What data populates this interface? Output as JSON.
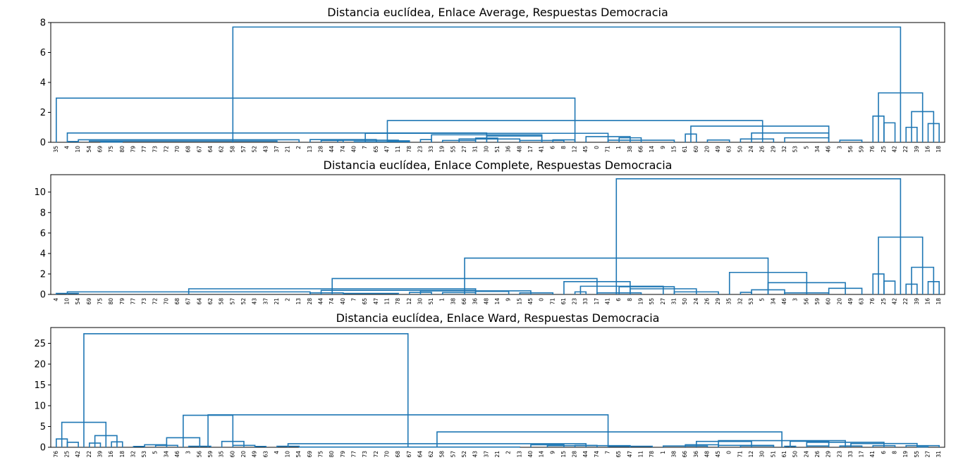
{
  "figure": {
    "line_color": "#1f77b4"
  },
  "chart_data": [
    {
      "type": "dendrogram",
      "title": "Distancia euclídea, Enlace Average, Respuestas Democracia",
      "xlabel": "",
      "ylabel": "",
      "ylim": [
        0,
        8
      ],
      "yticks": [
        0,
        2,
        4,
        6,
        8
      ],
      "leaves": [
        "35",
        "4",
        "10",
        "54",
        "69",
        "75",
        "80",
        "79",
        "77",
        "73",
        "72",
        "70",
        "68",
        "67",
        "64",
        "62",
        "58",
        "57",
        "52",
        "43",
        "37",
        "21",
        "2",
        "13",
        "28",
        "44",
        "74",
        "40",
        "7",
        "65",
        "47",
        "11",
        "78",
        "23",
        "33",
        "19",
        "55",
        "27",
        "31",
        "30",
        "51",
        "36",
        "48",
        "17",
        "41",
        "6",
        "8",
        "12",
        "45",
        "0",
        "71",
        "1",
        "38",
        "66",
        "14",
        "9",
        "15",
        "61",
        "60",
        "20",
        "49",
        "63",
        "50",
        "24",
        "26",
        "29",
        "32",
        "53",
        "5",
        "34",
        "46",
        "3",
        "56",
        "59",
        "76",
        "25",
        "42",
        "22",
        "39",
        "16",
        "18"
      ],
      "merges": [
        {
          "l": 1,
          "r": 2,
          "h": 0.05
        },
        {
          "l": 4,
          "r": 6,
          "h": 0.02
        },
        {
          "l": 3,
          "r": 20,
          "h": 0.08
        },
        {
          "l": 2,
          "r": 22,
          "h": 0.17
        },
        {
          "l": 24,
          "r": 26,
          "h": 0.12
        },
        {
          "l": 23,
          "r": 29,
          "h": 0.18
        },
        {
          "l": 27,
          "r": 32,
          "h": 0.04
        },
        {
          "l": 30,
          "r": 32,
          "h": 0.1
        },
        {
          "l": 25.5,
          "r": 31,
          "h": 0.14
        },
        {
          "l": 33,
          "r": 34,
          "h": 0.18
        },
        {
          "l": 35,
          "r": 38,
          "h": 0.12
        },
        {
          "l": 36.5,
          "r": 42,
          "h": 0.22
        },
        {
          "l": 38,
          "r": 40,
          "h": 0.28
        },
        {
          "l": 39,
          "r": 44,
          "h": 0.42
        },
        {
          "l": 42,
          "r": 46,
          "h": 0.12
        },
        {
          "l": 45,
          "r": 47,
          "h": 0.16
        },
        {
          "l": 34,
          "r": 44,
          "h": 0.5
        },
        {
          "l": 48,
          "r": 52,
          "h": 0.38
        },
        {
          "l": 50,
          "r": 56,
          "h": 0.14
        },
        {
          "l": 51,
          "r": 53,
          "h": 0.3
        },
        {
          "l": 28,
          "r": 50,
          "h": 0.6
        },
        {
          "l": 1,
          "r": 39,
          "h": 0.62
        },
        {
          "l": 57,
          "r": 58,
          "h": 0.55
        },
        {
          "l": 59,
          "r": 61,
          "h": 0.15
        },
        {
          "l": 62,
          "r": 65,
          "h": 0.22
        },
        {
          "l": 66,
          "r": 70,
          "h": 0.3
        },
        {
          "l": 71,
          "r": 73,
          "h": 0.14
        },
        {
          "l": 57.5,
          "r": 70,
          "h": 1.08
        },
        {
          "l": 63,
          "r": 70,
          "h": 0.62
        },
        {
          "l": 30,
          "r": 64,
          "h": 1.45
        },
        {
          "l": 0,
          "r": 47,
          "h": 2.95
        },
        {
          "l": 74,
          "r": 75,
          "h": 1.75
        },
        {
          "l": 75,
          "r": 76,
          "h": 1.3
        },
        {
          "l": 77,
          "r": 78,
          "h": 1.0
        },
        {
          "l": 79,
          "r": 80,
          "h": 1.25
        },
        {
          "l": 77.5,
          "r": 79.5,
          "h": 2.05
        },
        {
          "l": 74.5,
          "r": 78.5,
          "h": 3.3
        },
        {
          "l": 16,
          "r": 76.5,
          "h": 7.7
        }
      ]
    },
    {
      "type": "dendrogram",
      "title": "Distancia euclídea, Enlace Complete, Respuestas Democracia",
      "xlabel": "",
      "ylabel": "",
      "ylim": [
        0,
        11.7
      ],
      "yticks": [
        0,
        2,
        4,
        6,
        8,
        10
      ],
      "leaves": [
        "4",
        "10",
        "54",
        "69",
        "75",
        "80",
        "79",
        "77",
        "73",
        "72",
        "70",
        "68",
        "67",
        "64",
        "62",
        "58",
        "57",
        "52",
        "43",
        "37",
        "21",
        "2",
        "13",
        "28",
        "44",
        "74",
        "40",
        "7",
        "65",
        "47",
        "11",
        "78",
        "12",
        "30",
        "51",
        "1",
        "38",
        "66",
        "36",
        "48",
        "14",
        "9",
        "15",
        "45",
        "0",
        "71",
        "61",
        "23",
        "33",
        "17",
        "41",
        "6",
        "8",
        "19",
        "55",
        "27",
        "31",
        "50",
        "24",
        "26",
        "29",
        "35",
        "32",
        "53",
        "5",
        "34",
        "46",
        "3",
        "56",
        "59",
        "60",
        "20",
        "49",
        "63",
        "76",
        "25",
        "42",
        "22",
        "39",
        "16",
        "18"
      ],
      "merges": [
        {
          "l": 0,
          "r": 2,
          "h": 0.1
        },
        {
          "l": 1,
          "r": 23,
          "h": 0.25
        },
        {
          "l": 23,
          "r": 26,
          "h": 0.15
        },
        {
          "l": 26,
          "r": 31,
          "h": 0.1
        },
        {
          "l": 32,
          "r": 34,
          "h": 0.2
        },
        {
          "l": 35,
          "r": 38,
          "h": 0.18
        },
        {
          "l": 38,
          "r": 41,
          "h": 0.3
        },
        {
          "l": 42,
          "r": 45,
          "h": 0.15
        },
        {
          "l": 33,
          "r": 43,
          "h": 0.35
        },
        {
          "l": 24,
          "r": 38,
          "h": 0.4
        },
        {
          "l": 12,
          "r": 38,
          "h": 0.55
        },
        {
          "l": 47,
          "r": 48,
          "h": 0.25
        },
        {
          "l": 49,
          "r": 53,
          "h": 0.15
        },
        {
          "l": 51,
          "r": 56,
          "h": 0.75
        },
        {
          "l": 56,
          "r": 60,
          "h": 0.25
        },
        {
          "l": 52,
          "r": 58,
          "h": 0.55
        },
        {
          "l": 47.5,
          "r": 55,
          "h": 0.8
        },
        {
          "l": 46,
          "r": 52,
          "h": 1.25
        },
        {
          "l": 25,
          "r": 49,
          "h": 1.55
        },
        {
          "l": 62,
          "r": 63,
          "h": 0.2
        },
        {
          "l": 63,
          "r": 66,
          "h": 0.45
        },
        {
          "l": 66,
          "r": 70,
          "h": 0.15
        },
        {
          "l": 70,
          "r": 73,
          "h": 0.6
        },
        {
          "l": 64.5,
          "r": 71.5,
          "h": 1.15
        },
        {
          "l": 61,
          "r": 68,
          "h": 2.15
        },
        {
          "l": 37,
          "r": 64.5,
          "h": 3.55
        },
        {
          "l": 74,
          "r": 75,
          "h": 2.0
        },
        {
          "l": 75,
          "r": 76,
          "h": 1.3
        },
        {
          "l": 77,
          "r": 78,
          "h": 1.0
        },
        {
          "l": 79,
          "r": 80,
          "h": 1.25
        },
        {
          "l": 77.5,
          "r": 79.5,
          "h": 2.65
        },
        {
          "l": 74.5,
          "r": 78.5,
          "h": 5.6
        },
        {
          "l": 50.75,
          "r": 76.5,
          "h": 11.3
        }
      ]
    },
    {
      "type": "dendrogram",
      "title": "Distancia euclídea, Enlace Ward, Respuestas Democracia",
      "xlabel": "",
      "ylabel": "",
      "ylim": [
        0,
        28.8
      ],
      "yticks": [
        0,
        5,
        10,
        15,
        20,
        25
      ],
      "leaves": [
        "76",
        "25",
        "42",
        "22",
        "39",
        "16",
        "18",
        "32",
        "53",
        "5",
        "34",
        "46",
        "3",
        "56",
        "59",
        "35",
        "60",
        "20",
        "49",
        "63",
        "4",
        "10",
        "54",
        "69",
        "75",
        "80",
        "79",
        "77",
        "73",
        "72",
        "70",
        "68",
        "67",
        "64",
        "62",
        "58",
        "57",
        "52",
        "43",
        "37",
        "21",
        "2",
        "13",
        "40",
        "14",
        "9",
        "15",
        "28",
        "44",
        "74",
        "7",
        "65",
        "47",
        "11",
        "78",
        "1",
        "38",
        "66",
        "36",
        "48",
        "45",
        "0",
        "71",
        "12",
        "30",
        "51",
        "61",
        "50",
        "24",
        "26",
        "29",
        "23",
        "33",
        "17",
        "41",
        "6",
        "8",
        "19",
        "55",
        "27",
        "31"
      ],
      "merges": [
        {
          "l": 0,
          "r": 1,
          "h": 2.0
        },
        {
          "l": 1,
          "r": 2,
          "h": 1.2
        },
        {
          "l": 3,
          "r": 4,
          "h": 1.0
        },
        {
          "l": 5,
          "r": 6,
          "h": 1.3
        },
        {
          "l": 3.5,
          "r": 5.5,
          "h": 2.8
        },
        {
          "l": 0.5,
          "r": 4.5,
          "h": 6.0
        },
        {
          "l": 7,
          "r": 8,
          "h": 0.2
        },
        {
          "l": 9,
          "r": 11,
          "h": 0.45
        },
        {
          "l": 8,
          "r": 10,
          "h": 0.6
        },
        {
          "l": 12,
          "r": 14,
          "h": 0.25
        },
        {
          "l": 10,
          "r": 13,
          "h": 2.3
        },
        {
          "l": 15,
          "r": 17,
          "h": 1.4
        },
        {
          "l": 16,
          "r": 18,
          "h": 0.45
        },
        {
          "l": 18,
          "r": 19,
          "h": 0.2
        },
        {
          "l": 11.5,
          "r": 16,
          "h": 7.7
        },
        {
          "l": 20,
          "r": 22,
          "h": 0.25
        },
        {
          "l": 22,
          "r": 42,
          "h": 0.05
        },
        {
          "l": 43,
          "r": 46,
          "h": 0.6
        },
        {
          "l": 47,
          "r": 49,
          "h": 0.45
        },
        {
          "l": 50,
          "r": 54,
          "h": 0.25
        },
        {
          "l": 44.5,
          "r": 52,
          "h": 0.4
        },
        {
          "l": 21,
          "r": 48,
          "h": 0.85
        },
        {
          "l": 55,
          "r": 59,
          "h": 0.3
        },
        {
          "l": 57,
          "r": 60,
          "h": 0.6
        },
        {
          "l": 60,
          "r": 65,
          "h": 0.45
        },
        {
          "l": 62,
          "r": 65,
          "h": 0.35
        },
        {
          "l": 58,
          "r": 63,
          "h": 1.4
        },
        {
          "l": 66,
          "r": 67,
          "h": 0.25
        },
        {
          "l": 68,
          "r": 70,
          "h": 0.3
        },
        {
          "l": 71,
          "r": 73,
          "h": 0.3
        },
        {
          "l": 66.5,
          "r": 70,
          "h": 1.45
        },
        {
          "l": 74,
          "r": 76,
          "h": 0.4
        },
        {
          "l": 77,
          "r": 80,
          "h": 0.4
        },
        {
          "l": 78,
          "r": 79,
          "h": 0.1
        },
        {
          "l": 72,
          "r": 78,
          "h": 0.9
        },
        {
          "l": 68,
          "r": 75,
          "h": 1.2
        },
        {
          "l": 60,
          "r": 71.5,
          "h": 1.6
        },
        {
          "l": 34.5,
          "r": 65.75,
          "h": 3.7
        },
        {
          "l": 13.75,
          "r": 50,
          "h": 7.8
        },
        {
          "l": 2.5,
          "r": 31.87,
          "h": 27.3
        }
      ]
    }
  ]
}
